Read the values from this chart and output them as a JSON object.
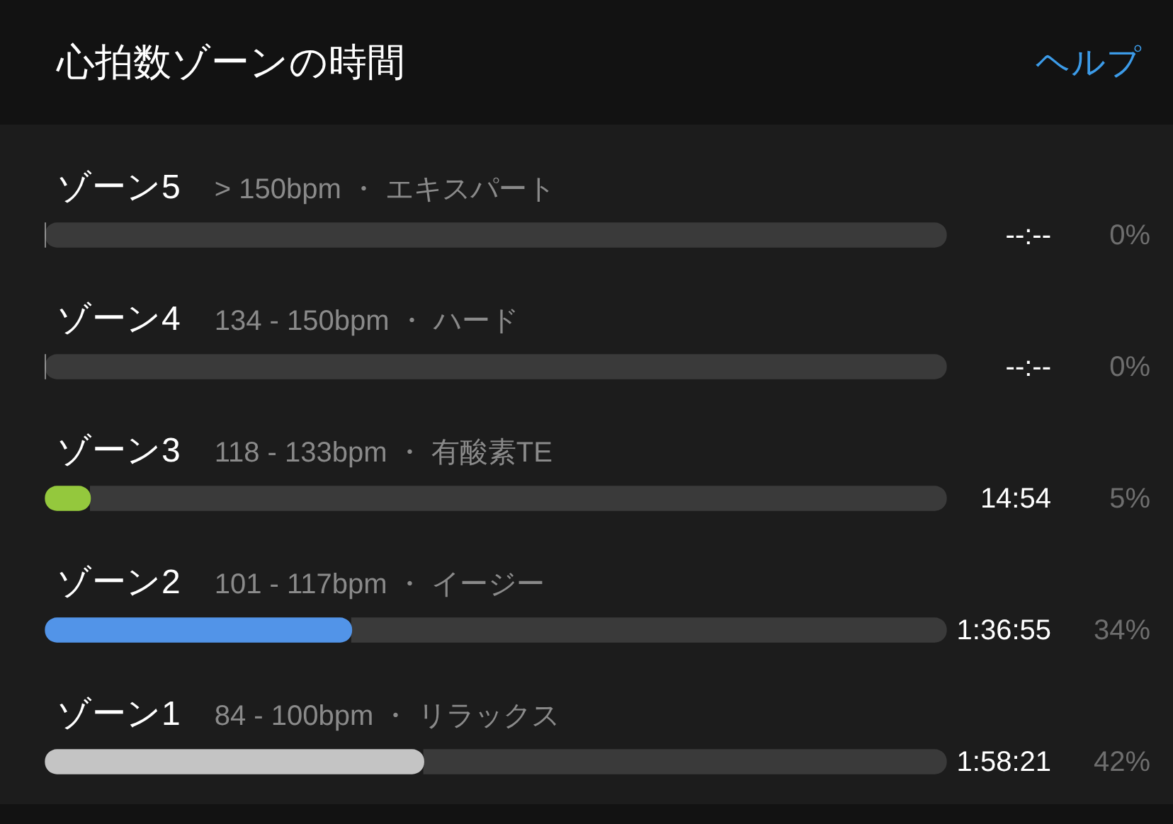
{
  "chart_data": {
    "type": "bar",
    "orientation": "horizontal",
    "stacked": true,
    "title": "心拍数ゾーンの時間",
    "categories": [
      "ゾーン5",
      "ゾーン4",
      "ゾーン3",
      "ゾーン2",
      "ゾーン1"
    ],
    "series": [
      {
        "colors": [
          "#c4c4c4",
          "#c4c4c4",
          "#94c83d",
          "#5294e8",
          "#c4c4c4"
        ],
        "values": [
          0,
          0,
          5,
          34,
          42
        ],
        "value_labels": [
          "0%",
          "0%",
          "5%",
          "34%",
          "42%"
        ]
      },
      {
        "color": "#3a3a3a",
        "values": [
          100,
          100,
          95,
          66,
          58
        ]
      }
    ],
    "xlim": [
      0,
      100
    ],
    "tick_labels": "y",
    "annotations": [
      "--:--",
      "--:--",
      "14:54",
      "1:36:55",
      "1:58:21",
      "ヘルプ",
      {
        "text": "> 150bpm ・ エキスパート",
        "y": "ゾーン5"
      },
      {
        "text": "134 - 150bpm ・ ハード",
        "y": "ゾーン4"
      },
      {
        "text": "118 - 133bpm ・ 有酸素TE",
        "y": "ゾーン3"
      },
      {
        "text": "101 - 117bpm ・ イージー",
        "y": "ゾーン2"
      },
      {
        "text": "84 - 100bpm ・ リラックス",
        "y": "ゾーン1"
      }
    ]
  }
}
